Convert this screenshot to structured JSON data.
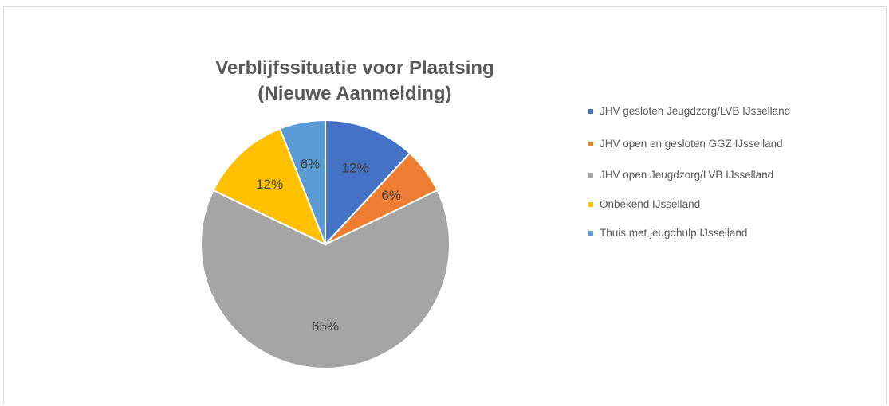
{
  "chart_data": {
    "type": "pie",
    "title_lines": [
      "Verblijfssituatie voor Plaatsing",
      "(Nieuwe Aanmelding)"
    ],
    "slices": [
      {
        "label": "JHV gesloten Jeugdzorg/LVB IJsselland",
        "value": 12,
        "display": "12%",
        "color": "#4472C4"
      },
      {
        "label": "JHV open en gesloten GGZ IJsselland",
        "value": 6,
        "display": "6%",
        "color": "#ED7D31"
      },
      {
        "label": "JHV open Jeugdzorg/LVB IJsselland",
        "value": 65,
        "display": "65%",
        "color": "#A5A5A5"
      },
      {
        "label": "Onbekend IJsselland",
        "value": 12,
        "display": "12%",
        "color": "#FFC000"
      },
      {
        "label": "Thuis met jeugdhulp IJsselland",
        "value": 6,
        "display": "6%",
        "color": "#5B9BD5"
      }
    ],
    "legend_position": "right",
    "data_labels": true
  }
}
